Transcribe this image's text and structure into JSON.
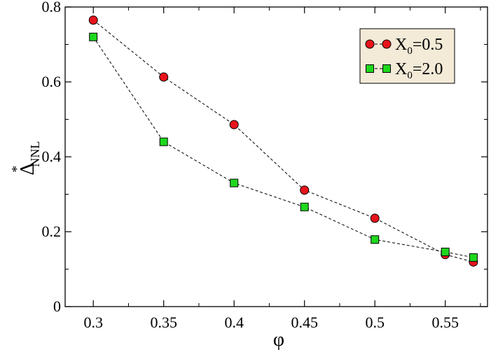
{
  "chart_data": {
    "type": "line",
    "xlabel": "φ",
    "ylabel": {
      "main": "Δ",
      "superscript": "*",
      "subscript": "NNL"
    },
    "xlim": [
      0.28,
      0.58
    ],
    "ylim": [
      0,
      0.8
    ],
    "xticks": [
      0.3,
      0.35,
      0.4,
      0.45,
      0.5,
      0.55
    ],
    "xtick_labels": [
      "0.3",
      "0.35",
      "0.4",
      "0.45",
      "0.5",
      "0.55"
    ],
    "yticks": [
      0,
      0.2,
      0.4,
      0.6,
      0.8
    ],
    "ytick_labels": [
      "0",
      "0.2",
      "0.4",
      "0.6",
      "0.8"
    ],
    "grid": false,
    "legend_position": "top-right",
    "legend_background": "#f3ead8",
    "series": [
      {
        "name_main": "X",
        "name_sub": "0",
        "name_rest": "=0.5",
        "marker": "circle",
        "color": "#e8141b",
        "line_style": "dashed",
        "x": [
          0.3,
          0.35,
          0.4,
          0.45,
          0.5,
          0.55,
          0.57
        ],
        "y": [
          0.765,
          0.613,
          0.486,
          0.311,
          0.236,
          0.139,
          0.119
        ]
      },
      {
        "name_main": "X",
        "name_sub": "0",
        "name_rest": "=2.0",
        "marker": "square",
        "color": "#1ed81e",
        "line_style": "dashed",
        "x": [
          0.3,
          0.35,
          0.4,
          0.45,
          0.5,
          0.55,
          0.57
        ],
        "y": [
          0.72,
          0.44,
          0.33,
          0.266,
          0.179,
          0.146,
          0.131
        ]
      }
    ]
  }
}
